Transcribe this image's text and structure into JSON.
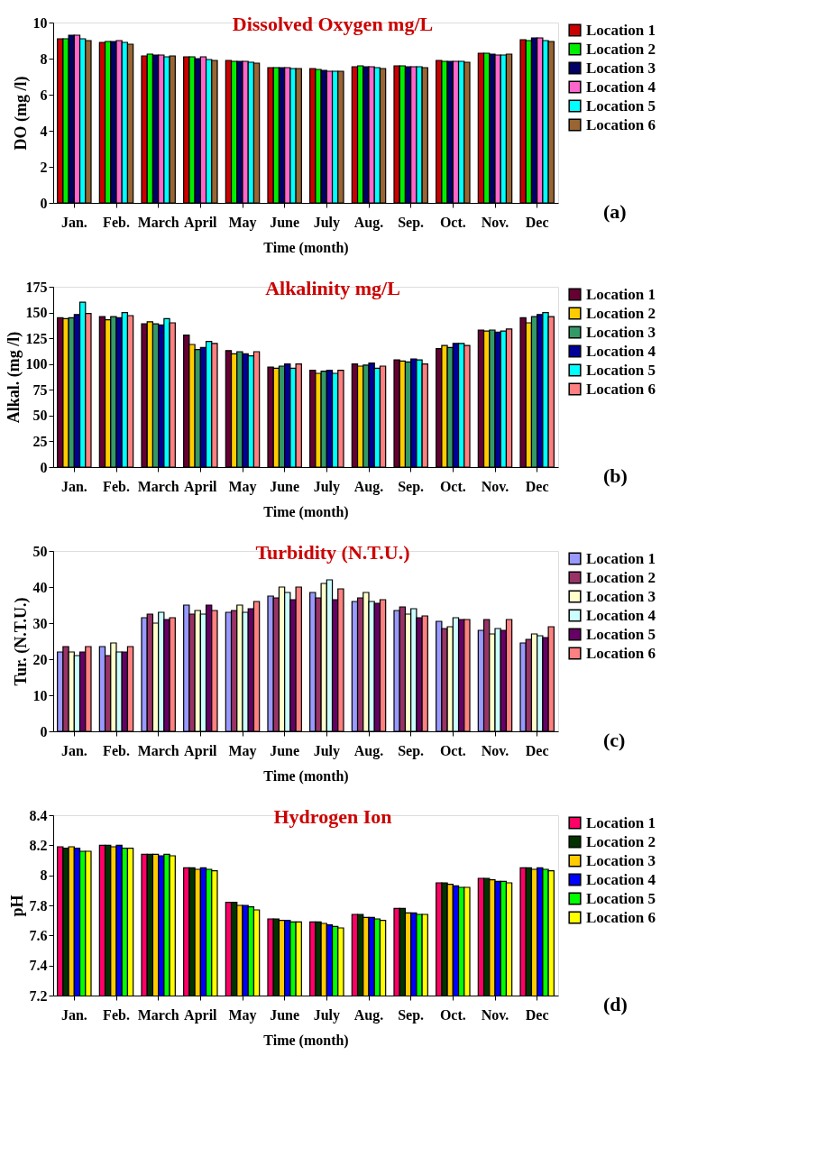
{
  "chart_data": [
    {
      "type": "bar",
      "title": "Dissolved Oxygen mg/L",
      "xlabel": "Time (month)",
      "ylabel": "DO (mg /l)",
      "legend": "right",
      "annotations": [
        "(a)"
      ],
      "categories": [
        "Jan.",
        "Feb.",
        "March",
        "April",
        "May",
        "June",
        "July",
        "Aug.",
        "Sep.",
        "Oct.",
        "Nov.",
        "Dec"
      ],
      "ylim": [
        0,
        10
      ],
      "yticks": [
        0,
        2,
        4,
        6,
        8,
        10
      ],
      "series": [
        {
          "name": "Location 1",
          "color": "#cc0000",
          "values": [
            9.1,
            8.9,
            8.15,
            8.1,
            7.9,
            7.5,
            7.45,
            7.55,
            7.6,
            7.9,
            8.3,
            9.05
          ]
        },
        {
          "name": "Location 2",
          "color": "#00ee00",
          "values": [
            9.1,
            8.95,
            8.25,
            8.1,
            7.85,
            7.5,
            7.4,
            7.6,
            7.6,
            7.85,
            8.3,
            9.0
          ]
        },
        {
          "name": "Location 3",
          "color": "#000066",
          "values": [
            9.3,
            8.95,
            8.2,
            8.0,
            7.85,
            7.5,
            7.35,
            7.55,
            7.55,
            7.85,
            8.25,
            9.15
          ]
        },
        {
          "name": "Location 4",
          "color": "#ff66cc",
          "values": [
            9.3,
            9.0,
            8.2,
            8.1,
            7.85,
            7.5,
            7.3,
            7.55,
            7.55,
            7.85,
            8.2,
            9.15
          ]
        },
        {
          "name": "Location 5",
          "color": "#00ffff",
          "values": [
            9.1,
            8.9,
            8.1,
            7.95,
            7.8,
            7.45,
            7.3,
            7.5,
            7.55,
            7.85,
            8.2,
            9.0
          ]
        },
        {
          "name": "Location 6",
          "color": "#996633",
          "values": [
            9.0,
            8.8,
            8.15,
            7.9,
            7.75,
            7.45,
            7.3,
            7.45,
            7.5,
            7.8,
            8.25,
            8.95
          ]
        }
      ]
    },
    {
      "type": "bar",
      "title": "Alkalinity mg/L",
      "xlabel": "Time (month)",
      "ylabel": "Alkal. (mg /l)",
      "legend": "right",
      "annotations": [
        "(b)"
      ],
      "categories": [
        "Jan.",
        "Feb.",
        "March",
        "April",
        "May",
        "June",
        "July",
        "Aug.",
        "Sep.",
        "Oct.",
        "Nov.",
        "Dec"
      ],
      "ylim": [
        0,
        175
      ],
      "yticks": [
        0,
        25,
        50,
        75,
        100,
        125,
        150,
        175
      ],
      "series": [
        {
          "name": "Location 1",
          "color": "#660033",
          "values": [
            145,
            146,
            139,
            128,
            113,
            97,
            94,
            100,
            104,
            115,
            133,
            145
          ]
        },
        {
          "name": "Location 2",
          "color": "#ffcc00",
          "values": [
            144,
            143,
            141,
            119,
            110,
            96,
            91,
            98,
            103,
            118,
            132,
            140
          ]
        },
        {
          "name": "Location 3",
          "color": "#339966",
          "values": [
            145,
            146,
            139,
            114,
            112,
            98,
            93,
            99,
            102,
            116,
            133,
            146
          ]
        },
        {
          "name": "Location 4",
          "color": "#000099",
          "values": [
            148,
            145,
            138,
            116,
            110,
            100,
            94,
            101,
            105,
            120,
            131,
            148
          ]
        },
        {
          "name": "Location 5",
          "color": "#00ffff",
          "values": [
            160,
            150,
            144,
            122,
            108,
            96,
            91,
            96,
            104,
            120,
            132,
            150
          ]
        },
        {
          "name": "Location 6",
          "color": "#ff8080",
          "values": [
            149,
            147,
            140,
            120,
            112,
            100,
            94,
            98,
            100,
            118,
            134,
            146
          ]
        }
      ]
    },
    {
      "type": "bar",
      "title": "Turbidity (N.T.U.)",
      "xlabel": "Time (month)",
      "ylabel": "Tur. (N.T.U.)",
      "legend": "right",
      "annotations": [
        "(c)"
      ],
      "categories": [
        "Jan.",
        "Feb.",
        "March",
        "April",
        "May",
        "June",
        "July",
        "Aug.",
        "Sep.",
        "Oct.",
        "Nov.",
        "Dec"
      ],
      "ylim": [
        0,
        50
      ],
      "yticks": [
        0,
        10,
        20,
        30,
        40,
        50
      ],
      "series": [
        {
          "name": "Location 1",
          "color": "#9999ff",
          "values": [
            22,
            23.5,
            31.5,
            35,
            33,
            37.5,
            38.5,
            36,
            33.5,
            30.5,
            28,
            24.5
          ]
        },
        {
          "name": "Location 2",
          "color": "#993366",
          "values": [
            23.5,
            21,
            32.5,
            32.5,
            33.5,
            37,
            37,
            37,
            34.5,
            28.5,
            31,
            25.5
          ]
        },
        {
          "name": "Location 3",
          "color": "#ffffcc",
          "values": [
            22,
            24.5,
            30,
            33.5,
            35,
            40,
            41,
            38.5,
            32.5,
            29,
            27,
            27
          ]
        },
        {
          "name": "Location 4",
          "color": "#ccffff",
          "values": [
            21,
            22,
            33,
            32.5,
            33,
            38.5,
            42,
            36,
            34,
            31.5,
            28.5,
            26.5
          ]
        },
        {
          "name": "Location 5",
          "color": "#660066",
          "values": [
            22,
            22,
            31,
            35,
            34,
            36.5,
            36.5,
            35.5,
            31.5,
            31,
            28,
            26
          ]
        },
        {
          "name": "Location 6",
          "color": "#ff8080",
          "values": [
            23.5,
            23.5,
            31.5,
            33.5,
            36,
            40,
            39.5,
            36.5,
            32,
            31,
            31,
            29
          ]
        }
      ]
    },
    {
      "type": "bar",
      "title": "Hydrogen Ion",
      "xlabel": "Time (month)",
      "ylabel": "pH",
      "legend": "right",
      "annotations": [
        "(d)"
      ],
      "categories": [
        "Jan.",
        "Feb.",
        "March",
        "April",
        "May",
        "June",
        "July",
        "Aug.",
        "Sep.",
        "Oct.",
        "Nov.",
        "Dec"
      ],
      "ylim": [
        7.2,
        8.4
      ],
      "yticks": [
        7.2,
        7.4,
        7.6,
        7.8,
        8,
        8.2,
        8.4
      ],
      "series": [
        {
          "name": "Location 1",
          "color": "#ff0066",
          "values": [
            8.19,
            8.2,
            8.14,
            8.05,
            7.82,
            7.71,
            7.69,
            7.74,
            7.78,
            7.95,
            7.98,
            8.05
          ]
        },
        {
          "name": "Location 2",
          "color": "#003300",
          "values": [
            8.18,
            8.2,
            8.14,
            8.05,
            7.82,
            7.71,
            7.69,
            7.74,
            7.78,
            7.95,
            7.98,
            8.05
          ]
        },
        {
          "name": "Location 3",
          "color": "#ffcc00",
          "values": [
            8.19,
            8.19,
            8.14,
            8.04,
            7.8,
            7.7,
            7.68,
            7.72,
            7.75,
            7.94,
            7.97,
            8.04
          ]
        },
        {
          "name": "Location 4",
          "color": "#0000ff",
          "values": [
            8.18,
            8.2,
            8.13,
            8.05,
            7.8,
            7.7,
            7.67,
            7.72,
            7.75,
            7.93,
            7.96,
            8.05
          ]
        },
        {
          "name": "Location 5",
          "color": "#00ff00",
          "values": [
            8.16,
            8.18,
            8.14,
            8.04,
            7.79,
            7.69,
            7.66,
            7.71,
            7.74,
            7.92,
            7.96,
            8.04
          ]
        },
        {
          "name": "Location 6",
          "color": "#ffff00",
          "values": [
            8.16,
            8.18,
            8.13,
            8.03,
            7.77,
            7.69,
            7.65,
            7.7,
            7.74,
            7.92,
            7.95,
            8.03
          ]
        }
      ]
    }
  ]
}
